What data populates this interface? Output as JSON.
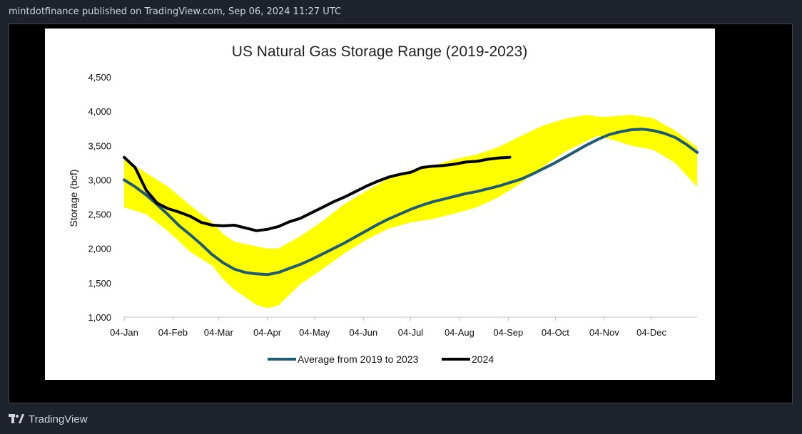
{
  "header": {
    "text": "mintdotfinance published on TradingView.com, Sep 06, 2024 11:27 UTC"
  },
  "footer": {
    "brand": "TradingView"
  },
  "colors": {
    "band": "#ffff00",
    "average": "#1f5c73",
    "current": "#000000"
  },
  "chart_data": {
    "type": "line",
    "title": "US Natural Gas Storage Range (2019-2023)",
    "ylabel": "Storage (bcf)",
    "xlabel": "",
    "ylim": [
      1000,
      4500
    ],
    "yticks": [
      1000,
      1500,
      2000,
      2500,
      3000,
      3500,
      4000,
      4500
    ],
    "ytick_labels": [
      "1,000",
      "1,500",
      "2,000",
      "2,500",
      "3,000",
      "3,500",
      "4,000",
      "4,500"
    ],
    "xlim_weeks": [
      0,
      52
    ],
    "xtick_weeks": [
      0,
      4.43,
      8.57,
      12.99,
      17.28,
      21.71,
      26.0,
      30.43,
      34.86,
      39.14,
      43.57,
      47.86
    ],
    "xtick_labels": [
      "04-Jan",
      "04-Feb",
      "04-Mar",
      "04-Apr",
      "04-May",
      "04-Jun",
      "04-Jul",
      "04-Aug",
      "04-Sep",
      "04-Oct",
      "04-Nov",
      "04-Dec"
    ],
    "range_band": {
      "x": [
        0,
        2,
        4,
        6,
        8,
        9,
        10,
        12,
        13,
        14,
        16,
        18,
        20,
        22,
        24,
        26,
        28,
        30,
        32,
        34,
        36,
        38,
        40,
        42,
        43,
        44,
        46,
        48,
        50,
        52
      ],
      "low": [
        2600,
        2500,
        2250,
        1950,
        1750,
        1550,
        1400,
        1180,
        1130,
        1170,
        1480,
        1700,
        1930,
        2130,
        2290,
        2380,
        2430,
        2510,
        2600,
        2750,
        2950,
        3190,
        3410,
        3570,
        3640,
        3600,
        3500,
        3440,
        3250,
        2900
      ],
      "high": [
        3300,
        3100,
        2900,
        2630,
        2380,
        2210,
        2100,
        2030,
        2000,
        2000,
        2180,
        2400,
        2650,
        2840,
        3020,
        3140,
        3210,
        3300,
        3370,
        3480,
        3640,
        3790,
        3890,
        3950,
        3920,
        3920,
        3950,
        3900,
        3720,
        3480
      ]
    },
    "series": [
      {
        "name": "Average from 2019 to 2023",
        "x": [
          0,
          1,
          2,
          3,
          4,
          5,
          6,
          7,
          8,
          9,
          10,
          11,
          12,
          13,
          14,
          15,
          16,
          17,
          18,
          19,
          20,
          21,
          22,
          23,
          24,
          25,
          26,
          27,
          28,
          29,
          30,
          31,
          32,
          33,
          34,
          35,
          36,
          37,
          38,
          39,
          40,
          41,
          42,
          43,
          44,
          45,
          46,
          47,
          48,
          49,
          50,
          51,
          52
        ],
        "values": [
          3000,
          2900,
          2780,
          2640,
          2490,
          2330,
          2200,
          2060,
          1910,
          1790,
          1700,
          1650,
          1630,
          1620,
          1650,
          1710,
          1770,
          1840,
          1920,
          2000,
          2080,
          2170,
          2260,
          2350,
          2430,
          2500,
          2570,
          2630,
          2680,
          2720,
          2760,
          2800,
          2830,
          2870,
          2910,
          2960,
          3010,
          3080,
          3160,
          3240,
          3330,
          3420,
          3510,
          3590,
          3660,
          3700,
          3730,
          3740,
          3720,
          3680,
          3620,
          3520,
          3400
        ]
      },
      {
        "name": "2024",
        "x": [
          0,
          1,
          2,
          3,
          4,
          5,
          6,
          7,
          8,
          9,
          10,
          11,
          12,
          13,
          14,
          15,
          16,
          17,
          18,
          19,
          20,
          21,
          22,
          23,
          24,
          25,
          26,
          27,
          28,
          29,
          30,
          31,
          32,
          33,
          34,
          35
        ],
        "values": [
          3330,
          3180,
          2850,
          2660,
          2580,
          2530,
          2470,
          2380,
          2340,
          2330,
          2340,
          2300,
          2260,
          2280,
          2320,
          2390,
          2440,
          2520,
          2600,
          2680,
          2750,
          2830,
          2910,
          2980,
          3040,
          3080,
          3110,
          3180,
          3200,
          3210,
          3230,
          3260,
          3270,
          3300,
          3320,
          3330
        ]
      }
    ],
    "legend": {
      "placement": "bottom",
      "labels": [
        "Average from 2019 to 2023",
        "2024"
      ]
    }
  }
}
